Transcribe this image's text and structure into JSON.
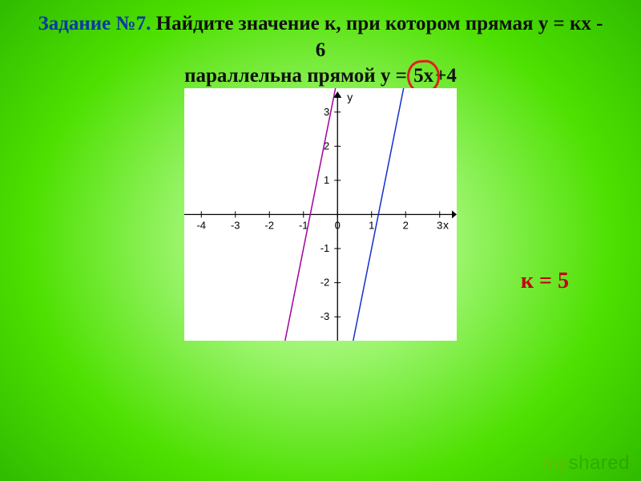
{
  "task": {
    "label_prefix": "Задание №7.",
    "text_before_underline": " Найдите значение к, при котором прямая у = кх ",
    "suffix_after_circle1": "- 6",
    "underline_word": "параллельна",
    "spacer": "    прямой    у = ",
    "circle2": "5х",
    "suffix_after_circle2": "+4",
    "title_fontsize": 25,
    "title_color": "#111111",
    "taskno_color": "#0a3aa0",
    "underline_color": "#e02020",
    "circle_color": "#e02020"
  },
  "answer": {
    "text": "к = 5",
    "color": "#c00010",
    "fontsize": 28
  },
  "chart": {
    "type": "line",
    "background_color": "#ffffff",
    "axis_color": "#000000",
    "grid": false,
    "xlim": [
      -4.5,
      3.5
    ],
    "ylim": [
      -3.7,
      3.7
    ],
    "xticks": [
      -4,
      -3,
      -2,
      -1,
      0,
      1,
      2,
      3
    ],
    "yticks": [
      -3,
      -2,
      -1,
      1,
      2,
      3
    ],
    "xlabel": "x",
    "ylabel": "y",
    "tick_fontsize": 13,
    "lines": [
      {
        "name": "y=5x+4",
        "color": "#a000a0",
        "width": 1.5,
        "points": [
          [
            -1.54,
            -3.7
          ],
          [
            -0.06,
            3.7
          ]
        ]
      },
      {
        "name": "y=5x-6",
        "color": "#1030d0",
        "width": 1.5,
        "points": [
          [
            0.46,
            -3.7
          ],
          [
            1.94,
            3.7
          ]
        ]
      }
    ]
  },
  "watermark": {
    "text_my": "my",
    "text_shared": "shared"
  },
  "page_bg_colors": [
    "#d9f9c4",
    "#9cf56e",
    "#4de000",
    "#2bb500"
  ]
}
